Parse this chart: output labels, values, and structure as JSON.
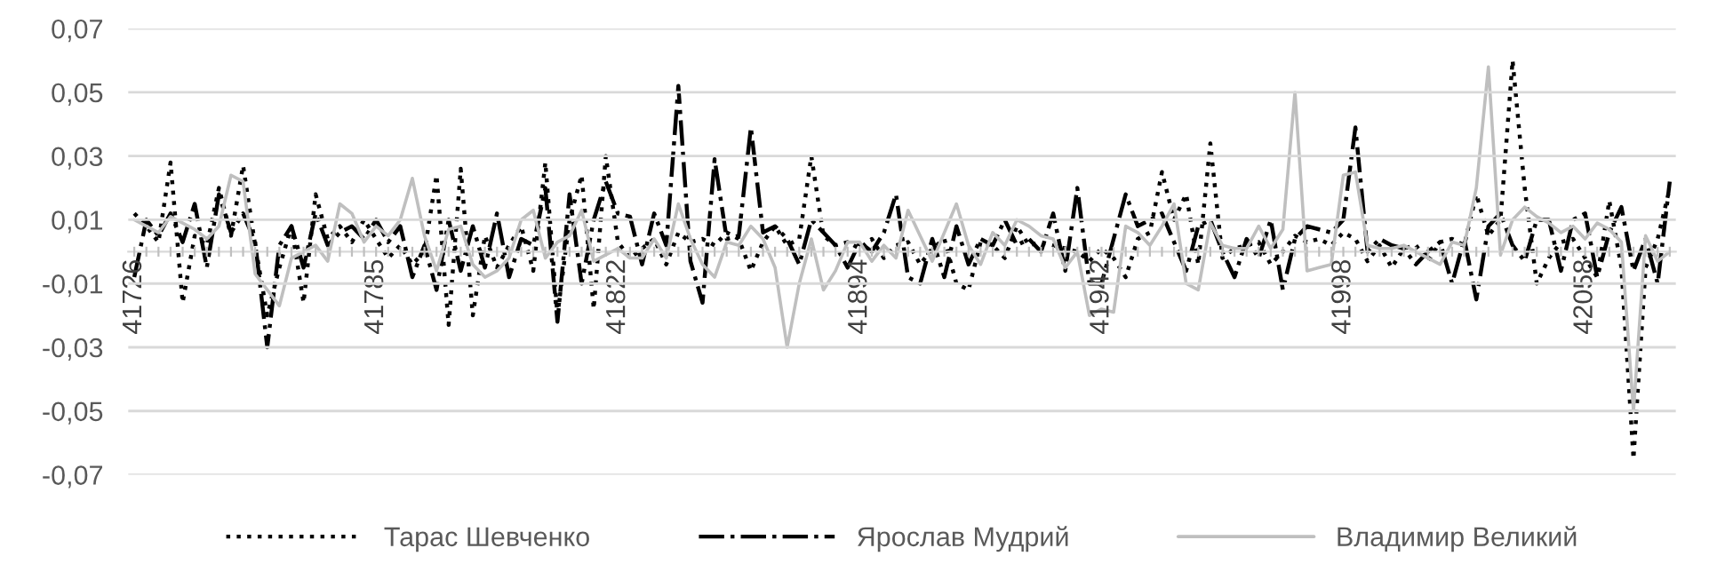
{
  "chart_data": {
    "type": "line",
    "categories": [
      "41726",
      null,
      null,
      null,
      null,
      null,
      null,
      null,
      null,
      null,
      null,
      null,
      null,
      null,
      null,
      null,
      null,
      null,
      null,
      null,
      "41785",
      null,
      null,
      null,
      null,
      null,
      null,
      null,
      null,
      null,
      null,
      null,
      null,
      null,
      null,
      null,
      null,
      null,
      null,
      null,
      "41822",
      null,
      null,
      null,
      null,
      null,
      null,
      null,
      null,
      null,
      null,
      null,
      null,
      null,
      null,
      null,
      null,
      null,
      null,
      null,
      "41894",
      null,
      null,
      null,
      null,
      null,
      null,
      null,
      null,
      null,
      null,
      null,
      null,
      null,
      null,
      null,
      null,
      null,
      null,
      null,
      "41942",
      null,
      null,
      null,
      null,
      null,
      null,
      null,
      null,
      null,
      null,
      null,
      null,
      null,
      null,
      null,
      null,
      null,
      null,
      null,
      "41998",
      null,
      null,
      null,
      null,
      null,
      null,
      null,
      null,
      null,
      null,
      null,
      null,
      null,
      null,
      null,
      null,
      null,
      null,
      null,
      "42058",
      null,
      null,
      null,
      null,
      null,
      null,
      null
    ],
    "series": [
      {
        "name": "Тарас Шевченко",
        "color": "#000000",
        "line_style": "dotted",
        "values": [
          0.012,
          0.008,
          0.003,
          0.028,
          -0.016,
          0.005,
          0.002,
          0.02,
          0.005,
          0.027,
          0.002,
          -0.02,
          -0.005,
          0.008,
          -0.016,
          0.018,
          0.004,
          0.008,
          0.003,
          0.01,
          0.004,
          -0.002,
          0.002,
          -0.004,
          0.0,
          0.024,
          -0.023,
          0.026,
          -0.02,
          0.005,
          -0.005,
          0.002,
          0.008,
          -0.006,
          0.028,
          -0.02,
          0.01,
          0.024,
          -0.018,
          0.03,
          0.003,
          -0.002,
          0.001,
          0.004,
          -0.004,
          0.006,
          0.003,
          0.004,
          0.002,
          0.006,
          0.004,
          -0.006,
          0.003,
          0.008,
          0.002,
          0.004,
          0.03,
          0.005,
          0.002,
          0.003,
          0.001,
          0.004,
          -0.002,
          0.002,
          0.003,
          -0.004,
          0.001,
          0.004,
          -0.01,
          -0.012,
          0.003,
          0.002,
          -0.002,
          0.008,
          0.002,
          0.003,
          0.002,
          0.001,
          0.0,
          -0.003,
          0.001,
          -0.002,
          -0.008,
          0.004,
          0.006,
          0.025,
          0.01,
          0.018,
          -0.004,
          0.034,
          -0.002,
          0.001,
          0.002,
          0.003,
          -0.004,
          0.0,
          0.005,
          0.003,
          0.004,
          0.002,
          0.006,
          0.004,
          -0.003,
          0.002,
          -0.005,
          0.001,
          0.002,
          -0.003,
          0.003,
          0.004,
          0.002,
          0.018,
          0.005,
          0.01,
          0.06,
          0.02,
          -0.01,
          -0.002,
          0.003,
          0.004,
          -0.002,
          -0.008,
          0.016,
          -0.005,
          -0.065,
          -0.005,
          0.004,
          0.02
        ]
      },
      {
        "name": "Ярослав Мудрий",
        "color": "#000000",
        "line_style": "dashdot",
        "values": [
          -0.008,
          0.01,
          0.005,
          0.012,
          0.003,
          0.015,
          -0.005,
          0.018,
          0.006,
          0.012,
          0.003,
          -0.03,
          0.002,
          0.008,
          -0.005,
          0.012,
          0.002,
          0.006,
          0.008,
          0.004,
          0.01,
          0.003,
          0.008,
          -0.008,
          0.002,
          -0.012,
          0.01,
          -0.006,
          0.008,
          -0.005,
          0.012,
          -0.008,
          0.004,
          0.002,
          0.02,
          -0.022,
          0.018,
          -0.01,
          0.01,
          0.022,
          0.012,
          0.011,
          -0.004,
          0.012,
          0.002,
          0.052,
          -0.003,
          -0.016,
          0.029,
          0.004,
          0.005,
          0.039,
          0.006,
          0.008,
          0.004,
          -0.004,
          0.01,
          0.006,
          0.002,
          -0.005,
          0.003,
          0.0,
          0.006,
          0.018,
          -0.008,
          -0.01,
          0.004,
          -0.008,
          0.008,
          -0.004,
          0.004,
          0.002,
          0.01,
          0.002,
          0.004,
          0.0,
          0.012,
          -0.006,
          0.02,
          -0.01,
          -0.01,
          0.004,
          0.018,
          0.008,
          0.01,
          0.012,
          0.003,
          -0.006,
          0.008,
          0.01,
          0.0,
          -0.008,
          0.004,
          -0.002,
          0.01,
          -0.012,
          0.004,
          0.008,
          0.007,
          0.006,
          0.01,
          0.039,
          0.0,
          0.004,
          0.002,
          0.001,
          -0.004,
          0.0,
          0.003,
          -0.01,
          0.004,
          -0.015,
          0.008,
          0.012,
          0.002,
          -0.003,
          0.01,
          0.01,
          -0.006,
          0.01,
          0.012,
          -0.008,
          0.006,
          0.014,
          -0.006,
          0.004,
          -0.01,
          0.022
        ]
      },
      {
        "name": "Владимир Великий",
        "color": "#bfbfbf",
        "line_style": "solid",
        "values": [
          0.01,
          0.008,
          0.006,
          0.011,
          0.009,
          0.007,
          0.004,
          0.008,
          0.024,
          0.022,
          -0.007,
          -0.012,
          -0.017,
          -0.002,
          0.0,
          0.002,
          -0.003,
          0.015,
          0.012,
          0.003,
          0.008,
          0.005,
          0.01,
          0.023,
          0.005,
          -0.006,
          0.007,
          0.008,
          -0.004,
          -0.008,
          -0.006,
          -0.002,
          0.01,
          0.013,
          -0.002,
          0.003,
          0.005,
          0.013,
          -0.003,
          -0.001,
          0.001,
          -0.002,
          -0.002,
          0.004,
          -0.002,
          0.015,
          0.004,
          -0.004,
          -0.008,
          0.003,
          0.002,
          0.008,
          0.004,
          -0.005,
          -0.03,
          -0.01,
          0.004,
          -0.012,
          -0.006,
          0.003,
          0.003,
          -0.003,
          0.002,
          -0.002,
          0.013,
          0.005,
          -0.003,
          0.006,
          0.015,
          0.002,
          -0.004,
          0.006,
          0.002,
          0.01,
          0.008,
          0.005,
          0.004,
          -0.005,
          0.0,
          -0.02,
          -0.018,
          -0.019,
          0.008,
          0.006,
          0.002,
          0.008,
          0.015,
          -0.01,
          -0.012,
          0.009,
          0.002,
          0.001,
          0.001,
          0.008,
          0.001,
          0.007,
          0.05,
          -0.006,
          -0.005,
          -0.004,
          0.024,
          0.025,
          0.002,
          0.001,
          0.001,
          0.002,
          0.0,
          -0.002,
          -0.004,
          0.003,
          0.002,
          0.02,
          0.058,
          -0.001,
          0.01,
          0.014,
          0.011,
          0.009,
          0.006,
          0.008,
          0.004,
          0.009,
          0.007,
          0.003,
          -0.05,
          0.005,
          -0.003,
          0.0
        ]
      }
    ],
    "ylim": [
      -0.07,
      0.07
    ],
    "yticks": [
      {
        "value": -0.07,
        "label": "-0,07"
      },
      {
        "value": -0.05,
        "label": "-0,05"
      },
      {
        "value": -0.03,
        "label": "-0,03"
      },
      {
        "value": -0.01,
        "label": "-0,01"
      },
      {
        "value": 0.01,
        "label": "0,01"
      },
      {
        "value": 0.03,
        "label": "0,03"
      },
      {
        "value": 0.05,
        "label": "0,05"
      },
      {
        "value": 0.07,
        "label": "0,07"
      }
    ],
    "grid": "y",
    "legend": "bottom",
    "marker": "none"
  }
}
